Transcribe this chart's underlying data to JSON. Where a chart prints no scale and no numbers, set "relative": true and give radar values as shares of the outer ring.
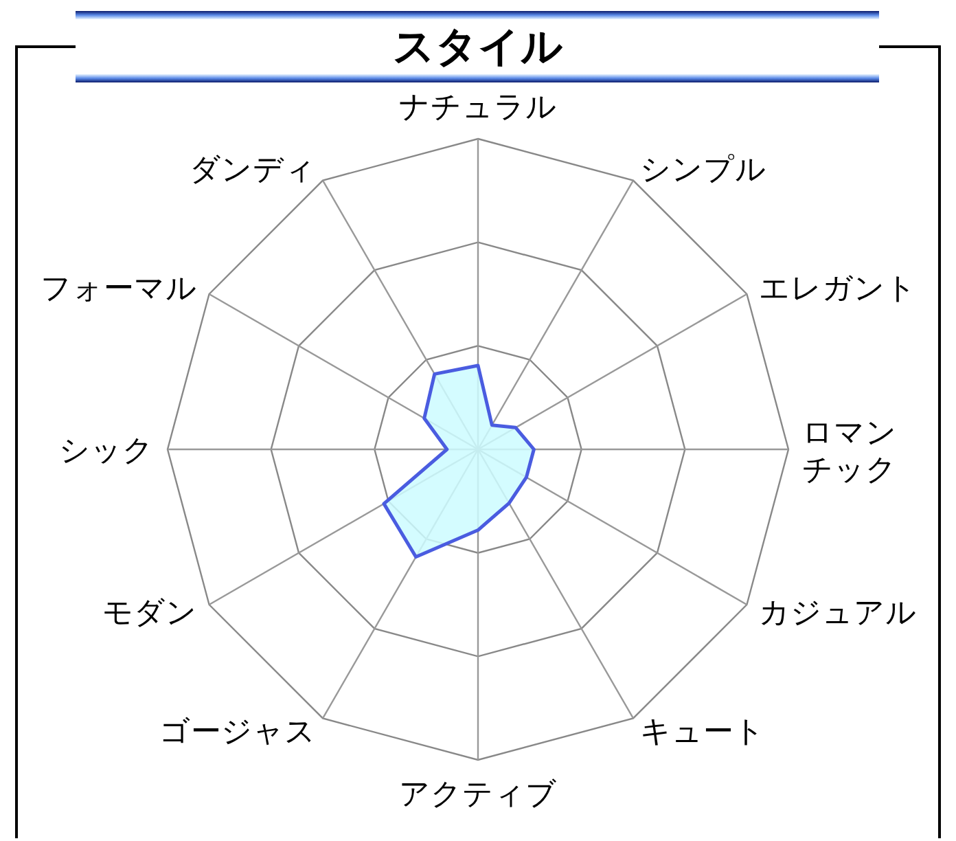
{
  "chart_data": {
    "type": "radar",
    "title": "スタイル",
    "relative": true,
    "grid": true,
    "marker": "none",
    "categories": [
      "ナチュラル",
      "シンプル",
      "エレガント",
      "ロマンチック",
      "カジュアル",
      "キュート",
      "アクティブ",
      "ゴージャス",
      "モダン",
      "シック",
      "フォーマル",
      "ダンディ"
    ],
    "series": [
      {
        "color": "#4a5ce0",
        "values": [
          0.27,
          0.09,
          0.14,
          0.18,
          0.18,
          0.2,
          0.26,
          0.4,
          0.35,
          0.1,
          0.2,
          0.28
        ]
      }
    ]
  }
}
